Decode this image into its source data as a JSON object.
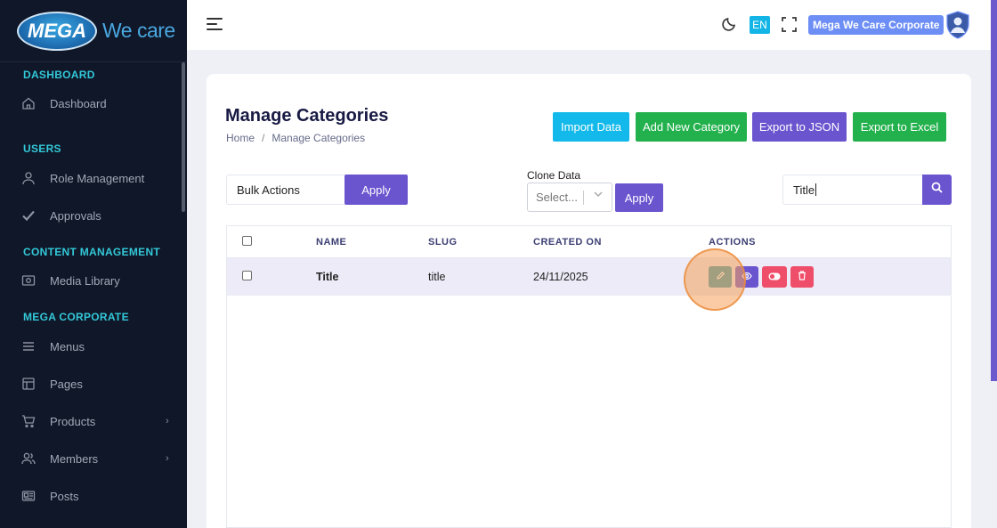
{
  "brand": {
    "logo_word": "MEGA",
    "logo_tagline": "We care"
  },
  "sidebar": {
    "sections": [
      {
        "title": "DASHBOARD",
        "items": [
          {
            "label": "Dashboard",
            "icon": "home-icon"
          }
        ]
      },
      {
        "title": "USERS",
        "items": [
          {
            "label": "Role Management",
            "icon": "user-icon"
          },
          {
            "label": "Approvals",
            "icon": "check-icon"
          }
        ]
      },
      {
        "title": "CONTENT MANAGEMENT",
        "items": [
          {
            "label": "Media Library",
            "icon": "image-icon"
          }
        ]
      },
      {
        "title": "MEGA CORPORATE",
        "items": [
          {
            "label": "Menus",
            "icon": "menu-icon"
          },
          {
            "label": "Pages",
            "icon": "layout-icon"
          },
          {
            "label": "Products",
            "icon": "cart-icon",
            "has_submenu": true
          },
          {
            "label": "Members",
            "icon": "users-icon",
            "has_submenu": true
          },
          {
            "label": "Posts",
            "icon": "newspaper-icon"
          }
        ]
      }
    ]
  },
  "topbar": {
    "language": "EN",
    "organization": "Mega We Care Corporate"
  },
  "page": {
    "title": "Manage Categories",
    "breadcrumb": {
      "home": "Home",
      "separator": "/",
      "current": "Manage Categories"
    },
    "buttons": {
      "import": "Import Data",
      "add": "Add New Category",
      "export_json": "Export to JSON",
      "export_excel": "Export to Excel"
    },
    "bulk": {
      "value": "Bulk Actions",
      "apply": "Apply"
    },
    "clone": {
      "label": "Clone Data",
      "placeholder": "Select...",
      "apply": "Apply"
    },
    "search": {
      "value": "Title"
    }
  },
  "table": {
    "headers": {
      "name": "NAME",
      "slug": "SLUG",
      "created_on": "CREATED ON",
      "actions": "ACTIONS"
    },
    "rows": [
      {
        "name": "Title",
        "slug": "title",
        "created_on": "24/11/2025"
      }
    ]
  },
  "colors": {
    "primary": "#6b55cf",
    "info": "#13b9ea",
    "success": "#22b14c",
    "danger": "#ef4e6a",
    "sidebar_bg": "#0f1728",
    "section_title": "#33c8d8"
  }
}
